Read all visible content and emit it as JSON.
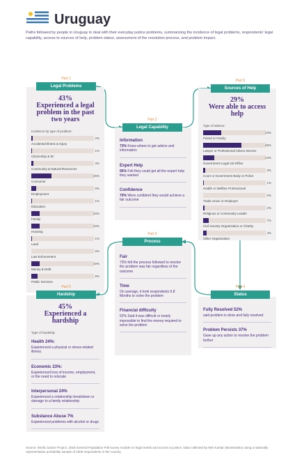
{
  "header": {
    "title": "Uruguay",
    "intro": "Paths followed by people in Uruguay to deal with their everyday justice problems, summarizing the incidence of legal problems, respondents' legal capability, access to sources of help, problem status, assessment of the resolution process, and problem impact."
  },
  "legal_problems": {
    "part": "Part 1",
    "title": "Legal Problems",
    "stat": "43%",
    "headline": "Experienced a legal problem in the past two years",
    "subtitle": "Incidence by type of problem:",
    "categories": [
      "Accidental Illness & Injury",
      "Citizenship & ID",
      "Community & Natural Resources",
      "Consumer",
      "Employment",
      "Education",
      "Family",
      "Housing",
      "Land",
      "Law Enforcement",
      "Money & Debt",
      "Public Services"
    ],
    "values": [
      2,
      1,
      3,
      25,
      6,
      1,
      10,
      10,
      1,
      0,
      10,
      8
    ],
    "value_labels": [
      "2%",
      "1%",
      "3%",
      "25%",
      "6%",
      "1%",
      "10%",
      "10%",
      "1%",
      "0%",
      "10%",
      "8%"
    ]
  },
  "legal_capability": {
    "part": "Part 2",
    "title": "Legal Capability",
    "items": [
      {
        "heading": "Information",
        "stat": "73%",
        "text": "Knew where to get advice and information"
      },
      {
        "heading": "Expert Help",
        "stat": "66%",
        "text": "Felt they could get all the expert help they wanted"
      },
      {
        "heading": "Confidence",
        "stat": "70%",
        "text": "Were confident they would achieve a fair outcome"
      }
    ]
  },
  "sources_of_help": {
    "part": "Part 3",
    "title": "Sources of Help",
    "stat": "29%",
    "headline": "Were able to access help",
    "subtitle": "Type of advisor:",
    "categories": [
      "Friend or Family",
      "Lawyer or Professional Advice Service",
      "Government Legal Aid Office",
      "Court or Government Body or Police",
      "Health or Welfare Professional",
      "Trade Union or Employer",
      "Religious or Community Leader",
      "Civil Society Organization or Charity",
      "Other Organization"
    ],
    "values": [
      23,
      48,
      14,
      3,
      1,
      0,
      2,
      7,
      4
    ],
    "value_labels": [
      "23%",
      "48%",
      "14%",
      "3%",
      "1%",
      "0%",
      "2%",
      "7%",
      "4%"
    ]
  },
  "status": {
    "part": "Part 4",
    "title": "Status",
    "items": [
      {
        "heading": "Fully Resolved 52%",
        "text": "said problem is done and fully resolved"
      },
      {
        "heading": "Problem Persists 37%",
        "text": "Gave up any action to resolve the problem further"
      }
    ]
  },
  "process": {
    "part": "Part 5",
    "title": "Process",
    "items": [
      {
        "heading": "Fair",
        "text": "73% felt the process followed to resolve the problem was fair regardless of the outcome"
      },
      {
        "heading": "Time",
        "text": "On average, it took respondents 9.8 Months to solve the problem"
      },
      {
        "heading": "Financial difficulty",
        "text": "52% Said it was difficult or nearly impossible to find the money required to solve the problem"
      }
    ]
  },
  "hardship": {
    "part": "Part 6",
    "title": "Hardship",
    "stat": "45%",
    "headline": "Experienced a hardship",
    "subtitle": "Type of hardship:",
    "items": [
      {
        "heading": "Health 24%:",
        "text": "Experienced a physical or stress-related illness."
      },
      {
        "heading": "Economic 23%:",
        "text": "Experienced loss of income, employment, or the need to relocate"
      },
      {
        "heading": "Interpersonal 24%",
        "text": "Experienced a relationship breakdown or damage to a family relationship"
      },
      {
        "heading": "Substance Abuse 7%",
        "text": "Experienced problems with alcohol or drugs"
      }
    ]
  },
  "footer": "Source: World Justice Project. 2018 General Population Poll survey module on legal needs and access to justice. Data collected by IMS Kantar (Montevideo) using a nationally representative probability sample of 1000 respondents in the country."
}
